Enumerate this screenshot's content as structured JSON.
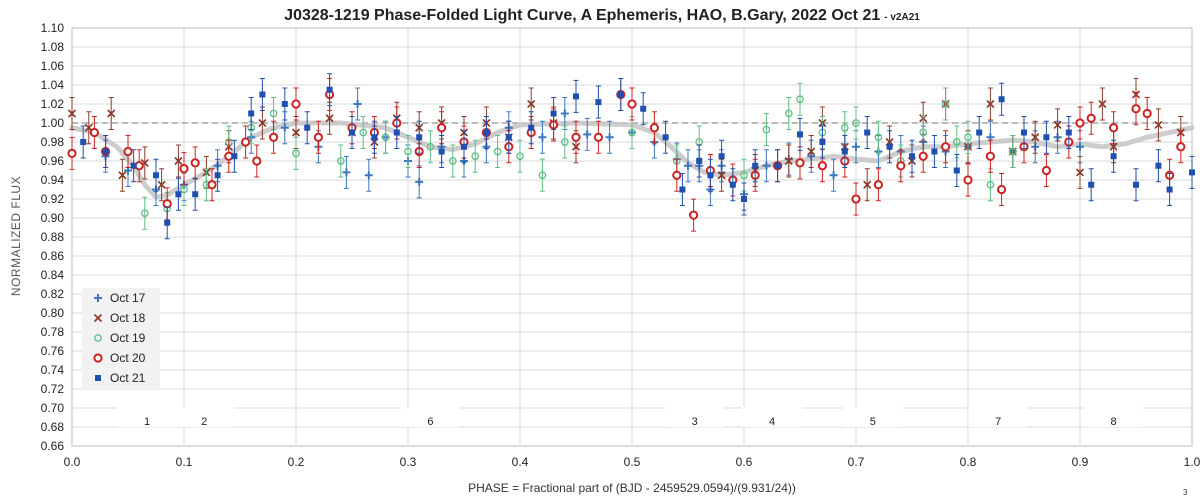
{
  "chart_data": {
    "type": "scatter",
    "title": "J0328-1219 Phase-Folded Light Curve, A Ephemeris, HAO, B.Gary, 2022 Oct 21",
    "title_suffix": "- v2A21",
    "xlabel": "PHASE = Fractional part of (BJD - 2459529.0594)/(9.931/24))",
    "ylabel": "NORMALIZED FLUX",
    "xlim": [
      0.0,
      1.0
    ],
    "ylim": [
      0.66,
      1.1
    ],
    "x_ticks": [
      "0.0",
      "0.1",
      "0.2",
      "0.3",
      "0.4",
      "0.5",
      "0.6",
      "0.7",
      "0.8",
      "0.9",
      "1.0"
    ],
    "y_ticks": [
      "0.66",
      "0.68",
      "0.70",
      "0.72",
      "0.74",
      "0.76",
      "0.78",
      "0.80",
      "0.82",
      "0.84",
      "0.86",
      "0.88",
      "0.90",
      "0.92",
      "0.94",
      "0.96",
      "0.98",
      "1.00",
      "1.02",
      "1.04",
      "1.06",
      "1.08",
      "1.10"
    ],
    "reference_line": 1.0,
    "grid": true,
    "legend_position": "left",
    "corner_note": "3",
    "zone_labels": [
      {
        "text": "1",
        "x": 0.067
      },
      {
        "text": "2",
        "x": 0.118
      },
      {
        "text": "6",
        "x": 0.32
      },
      {
        "text": "3",
        "x": 0.556
      },
      {
        "text": "4",
        "x": 0.625
      },
      {
        "text": "5",
        "x": 0.715
      },
      {
        "text": "7",
        "x": 0.827
      },
      {
        "text": "8",
        "x": 0.93
      }
    ],
    "model_curve": [
      [
        0.0,
        0.995
      ],
      [
        0.02,
        0.99
      ],
      [
        0.04,
        0.975
      ],
      [
        0.055,
        0.955
      ],
      [
        0.065,
        0.935
      ],
      [
        0.075,
        0.922
      ],
      [
        0.085,
        0.924
      ],
      [
        0.1,
        0.935
      ],
      [
        0.12,
        0.948
      ],
      [
        0.14,
        0.965
      ],
      [
        0.16,
        0.985
      ],
      [
        0.18,
        0.995
      ],
      [
        0.2,
        1.0
      ],
      [
        0.24,
        1.0
      ],
      [
        0.28,
        0.995
      ],
      [
        0.3,
        0.985
      ],
      [
        0.32,
        0.975
      ],
      [
        0.34,
        0.972
      ],
      [
        0.36,
        0.978
      ],
      [
        0.38,
        0.99
      ],
      [
        0.4,
        0.998
      ],
      [
        0.45,
        1.0
      ],
      [
        0.5,
        0.998
      ],
      [
        0.52,
        0.99
      ],
      [
        0.535,
        0.975
      ],
      [
        0.55,
        0.958
      ],
      [
        0.565,
        0.948
      ],
      [
        0.58,
        0.945
      ],
      [
        0.6,
        0.948
      ],
      [
        0.62,
        0.955
      ],
      [
        0.64,
        0.96
      ],
      [
        0.66,
        0.962
      ],
      [
        0.68,
        0.965
      ],
      [
        0.7,
        0.962
      ],
      [
        0.72,
        0.96
      ],
      [
        0.74,
        0.97
      ],
      [
        0.76,
        0.975
      ],
      [
        0.78,
        0.975
      ],
      [
        0.8,
        0.978
      ],
      [
        0.82,
        0.98
      ],
      [
        0.84,
        0.982
      ],
      [
        0.86,
        0.98
      ],
      [
        0.88,
        0.975
      ],
      [
        0.9,
        0.978
      ],
      [
        0.92,
        0.975
      ],
      [
        0.94,
        0.978
      ],
      [
        0.96,
        0.985
      ],
      [
        0.98,
        0.99
      ],
      [
        1.0,
        0.995
      ]
    ],
    "series": [
      {
        "name": "Oct 17",
        "marker": "plus",
        "color": "#3c78c0",
        "points": [
          [
            0.03,
            0.965
          ],
          [
            0.05,
            0.95
          ],
          [
            0.075,
            0.93
          ],
          [
            0.1,
            0.935
          ],
          [
            0.13,
            0.955
          ],
          [
            0.16,
            0.985
          ],
          [
            0.19,
            0.995
          ],
          [
            0.22,
            0.975
          ],
          [
            0.245,
            0.948
          ],
          [
            0.255,
            1.02
          ],
          [
            0.265,
            0.945
          ],
          [
            0.28,
            0.985
          ],
          [
            0.3,
            0.96
          ],
          [
            0.31,
            0.938
          ],
          [
            0.33,
            0.975
          ],
          [
            0.35,
            0.96
          ],
          [
            0.37,
            0.975
          ],
          [
            0.39,
            0.995
          ],
          [
            0.42,
            0.985
          ],
          [
            0.44,
            1.01
          ],
          [
            0.46,
            0.988
          ],
          [
            0.48,
            0.985
          ],
          [
            0.5,
            0.99
          ],
          [
            0.52,
            0.98
          ],
          [
            0.54,
            0.962
          ],
          [
            0.55,
            0.955
          ],
          [
            0.56,
            0.955
          ],
          [
            0.57,
            0.93
          ],
          [
            0.58,
            0.955
          ],
          [
            0.6,
            0.925
          ],
          [
            0.62,
            0.955
          ],
          [
            0.64,
            0.962
          ],
          [
            0.66,
            0.965
          ],
          [
            0.68,
            0.945
          ],
          [
            0.7,
            0.975
          ],
          [
            0.72,
            0.97
          ],
          [
            0.74,
            0.97
          ],
          [
            0.76,
            0.98
          ],
          [
            0.78,
            0.97
          ],
          [
            0.8,
            0.975
          ],
          [
            0.82,
            0.985
          ],
          [
            0.84,
            0.97
          ],
          [
            0.86,
            0.975
          ],
          [
            0.88,
            0.985
          ],
          [
            0.9,
            0.975
          ]
        ]
      },
      {
        "name": "Oct 18",
        "marker": "x",
        "color": "#8b3a2a",
        "points": [
          [
            0.0,
            1.01
          ],
          [
            0.015,
            0.995
          ],
          [
            0.035,
            1.01
          ],
          [
            0.045,
            0.945
          ],
          [
            0.065,
            0.958
          ],
          [
            0.08,
            0.935
          ],
          [
            0.095,
            0.96
          ],
          [
            0.12,
            0.948
          ],
          [
            0.14,
            0.975
          ],
          [
            0.17,
            1.0
          ],
          [
            0.2,
            0.99
          ],
          [
            0.23,
            1.005
          ],
          [
            0.25,
            0.99
          ],
          [
            0.27,
            0.98
          ],
          [
            0.29,
            1.005
          ],
          [
            0.31,
            0.995
          ],
          [
            0.33,
            1.0
          ],
          [
            0.35,
            0.99
          ],
          [
            0.37,
            1.0
          ],
          [
            0.39,
            0.985
          ],
          [
            0.41,
            1.02
          ],
          [
            0.43,
            1.0
          ],
          [
            0.45,
            0.975
          ],
          [
            0.58,
            0.945
          ],
          [
            0.61,
            0.95
          ],
          [
            0.64,
            0.96
          ],
          [
            0.66,
            0.97
          ],
          [
            0.67,
            1.0
          ],
          [
            0.69,
            0.975
          ],
          [
            0.71,
            0.935
          ],
          [
            0.73,
            0.98
          ],
          [
            0.75,
            0.96
          ],
          [
            0.76,
            1.005
          ],
          [
            0.78,
            1.02
          ],
          [
            0.8,
            0.975
          ],
          [
            0.82,
            1.02
          ],
          [
            0.84,
            0.97
          ],
          [
            0.86,
            0.985
          ],
          [
            0.88,
            0.998
          ],
          [
            0.9,
            0.948
          ],
          [
            0.92,
            1.02
          ],
          [
            0.93,
            0.975
          ],
          [
            0.95,
            1.03
          ],
          [
            0.97,
            0.998
          ],
          [
            0.99,
            0.99
          ]
        ]
      },
      {
        "name": "Oct 19",
        "marker": "circle-open",
        "color": "#5fbf86",
        "points": [
          [
            0.065,
            0.905
          ],
          [
            0.085,
            0.91
          ],
          [
            0.1,
            0.93
          ],
          [
            0.12,
            0.935
          ],
          [
            0.14,
            0.98
          ],
          [
            0.16,
            0.995
          ],
          [
            0.18,
            1.01
          ],
          [
            0.2,
            0.968
          ],
          [
            0.24,
            0.96
          ],
          [
            0.26,
            0.99
          ],
          [
            0.28,
            0.985
          ],
          [
            0.3,
            0.97
          ],
          [
            0.32,
            0.975
          ],
          [
            0.34,
            0.96
          ],
          [
            0.36,
            0.965
          ],
          [
            0.38,
            0.97
          ],
          [
            0.4,
            0.965
          ],
          [
            0.42,
            0.945
          ],
          [
            0.44,
            0.98
          ],
          [
            0.5,
            0.99
          ],
          [
            0.54,
            0.96
          ],
          [
            0.56,
            0.98
          ],
          [
            0.6,
            0.945
          ],
          [
            0.62,
            0.993
          ],
          [
            0.64,
            1.01
          ],
          [
            0.65,
            1.025
          ],
          [
            0.67,
            0.99
          ],
          [
            0.69,
            0.995
          ],
          [
            0.7,
            1.0
          ],
          [
            0.72,
            0.985
          ],
          [
            0.74,
            0.96
          ],
          [
            0.76,
            0.99
          ],
          [
            0.78,
            1.02
          ],
          [
            0.79,
            0.98
          ],
          [
            0.8,
            0.985
          ],
          [
            0.82,
            0.935
          ],
          [
            0.84,
            0.97
          ]
        ]
      },
      {
        "name": "Oct 20",
        "marker": "circle-bold",
        "color": "#cc2222",
        "points": [
          [
            0.0,
            0.968
          ],
          [
            0.02,
            0.99
          ],
          [
            0.03,
            0.97
          ],
          [
            0.05,
            0.97
          ],
          [
            0.06,
            0.955
          ],
          [
            0.085,
            0.915
          ],
          [
            0.1,
            0.952
          ],
          [
            0.11,
            0.958
          ],
          [
            0.125,
            0.935
          ],
          [
            0.14,
            0.965
          ],
          [
            0.155,
            0.98
          ],
          [
            0.165,
            0.96
          ],
          [
            0.18,
            0.985
          ],
          [
            0.2,
            1.02
          ],
          [
            0.22,
            0.985
          ],
          [
            0.23,
            1.03
          ],
          [
            0.25,
            0.995
          ],
          [
            0.27,
            0.99
          ],
          [
            0.29,
            1.0
          ],
          [
            0.31,
            0.97
          ],
          [
            0.33,
            0.995
          ],
          [
            0.35,
            0.98
          ],
          [
            0.37,
            0.99
          ],
          [
            0.39,
            0.975
          ],
          [
            0.41,
            0.99
          ],
          [
            0.43,
            0.998
          ],
          [
            0.45,
            0.985
          ],
          [
            0.47,
            0.985
          ],
          [
            0.49,
            1.03
          ],
          [
            0.5,
            1.02
          ],
          [
            0.52,
            0.995
          ],
          [
            0.54,
            0.945
          ],
          [
            0.555,
            0.903
          ],
          [
            0.57,
            0.95
          ],
          [
            0.59,
            0.94
          ],
          [
            0.61,
            0.945
          ],
          [
            0.63,
            0.955
          ],
          [
            0.65,
            0.958
          ],
          [
            0.67,
            0.955
          ],
          [
            0.69,
            0.96
          ],
          [
            0.7,
            0.92
          ],
          [
            0.72,
            0.935
          ],
          [
            0.74,
            0.955
          ],
          [
            0.76,
            0.965
          ],
          [
            0.78,
            0.975
          ],
          [
            0.8,
            0.94
          ],
          [
            0.82,
            0.965
          ],
          [
            0.83,
            0.93
          ],
          [
            0.85,
            0.975
          ],
          [
            0.87,
            0.95
          ],
          [
            0.89,
            0.98
          ],
          [
            0.9,
            1.0
          ],
          [
            0.91,
            1.005
          ],
          [
            0.93,
            0.995
          ],
          [
            0.95,
            1.015
          ],
          [
            0.96,
            1.01
          ],
          [
            0.98,
            0.945
          ],
          [
            0.99,
            0.975
          ]
        ]
      },
      {
        "name": "Oct 21",
        "marker": "square",
        "color": "#1f4fb0",
        "points": [
          [
            0.01,
            0.98
          ],
          [
            0.03,
            0.97
          ],
          [
            0.055,
            0.955
          ],
          [
            0.075,
            0.945
          ],
          [
            0.085,
            0.895
          ],
          [
            0.095,
            0.925
          ],
          [
            0.11,
            0.925
          ],
          [
            0.13,
            0.945
          ],
          [
            0.145,
            0.965
          ],
          [
            0.16,
            1.01
          ],
          [
            0.17,
            1.03
          ],
          [
            0.19,
            1.02
          ],
          [
            0.21,
            0.995
          ],
          [
            0.23,
            1.035
          ],
          [
            0.25,
            0.99
          ],
          [
            0.27,
            0.985
          ],
          [
            0.29,
            0.99
          ],
          [
            0.31,
            0.985
          ],
          [
            0.33,
            0.97
          ],
          [
            0.35,
            0.975
          ],
          [
            0.37,
            0.99
          ],
          [
            0.39,
            0.985
          ],
          [
            0.41,
            0.995
          ],
          [
            0.43,
            1.01
          ],
          [
            0.45,
            1.028
          ],
          [
            0.47,
            1.022
          ],
          [
            0.49,
            1.03
          ],
          [
            0.51,
            1.015
          ],
          [
            0.53,
            0.985
          ],
          [
            0.545,
            0.93
          ],
          [
            0.56,
            0.96
          ],
          [
            0.57,
            0.945
          ],
          [
            0.58,
            0.965
          ],
          [
            0.59,
            0.935
          ],
          [
            0.6,
            0.92
          ],
          [
            0.61,
            0.955
          ],
          [
            0.63,
            0.955
          ],
          [
            0.65,
            0.988
          ],
          [
            0.67,
            0.98
          ],
          [
            0.69,
            0.97
          ],
          [
            0.71,
            0.99
          ],
          [
            0.73,
            0.975
          ],
          [
            0.75,
            0.965
          ],
          [
            0.77,
            0.97
          ],
          [
            0.79,
            0.95
          ],
          [
            0.81,
            0.99
          ],
          [
            0.83,
            1.025
          ],
          [
            0.85,
            0.99
          ],
          [
            0.87,
            0.985
          ],
          [
            0.89,
            0.99
          ],
          [
            0.91,
            0.935
          ],
          [
            0.93,
            0.965
          ],
          [
            0.95,
            0.935
          ],
          [
            0.97,
            0.955
          ],
          [
            0.98,
            0.93
          ],
          [
            1.0,
            0.948
          ]
        ]
      }
    ]
  }
}
